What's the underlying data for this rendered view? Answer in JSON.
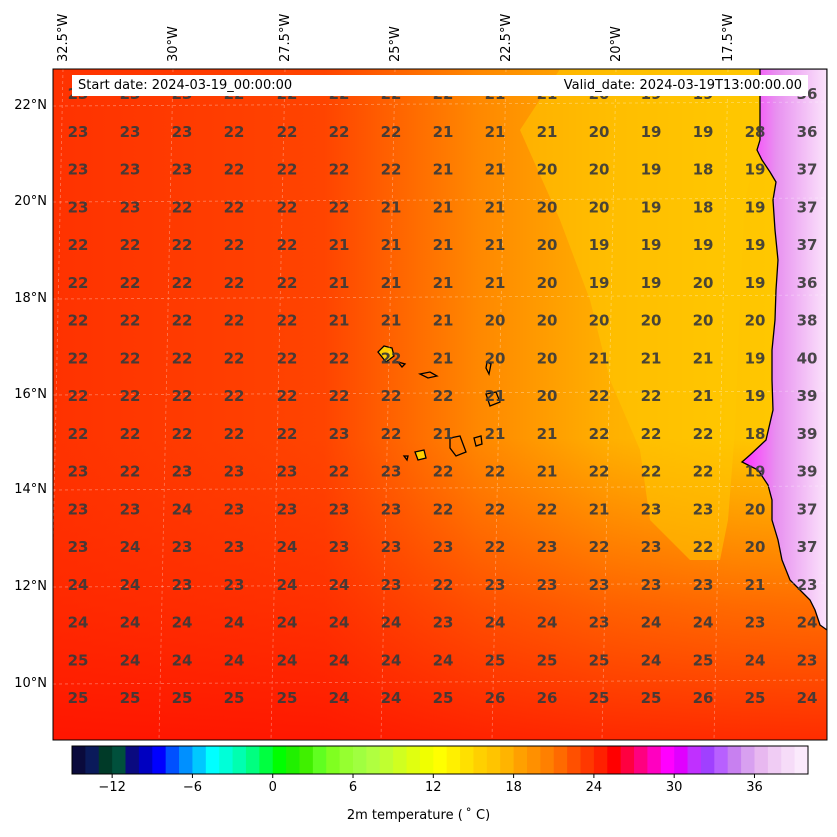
{
  "map": {
    "extent": {
      "lon_min": -32.8,
      "lon_max": -15.0,
      "lat_min": 8.9,
      "lat_max": 22.8
    },
    "projection": "PlateCarree",
    "gridlines": true
  },
  "header": {
    "start_date": "Start date: 2024-03-19_00:00:00",
    "valid_date": "Valid_date: 2024-03-19T13:00:00.00"
  },
  "lon_ticks": [
    "32.5°W",
    "30°W",
    "27.5°W",
    "25°W",
    "22.5°W",
    "20°W",
    "17.5°W"
  ],
  "lat_ticks": [
    "22°N",
    "20°N",
    "18°N",
    "16°N",
    "14°N",
    "12°N",
    "10°N"
  ],
  "temperature_grid": [
    [
      "23",
      "23",
      "23",
      "22",
      "22",
      "22",
      "22",
      "22",
      "21",
      "21",
      "20",
      "19",
      "19",
      "36"
    ],
    [
      "23",
      "23",
      "23",
      "22",
      "22",
      "22",
      "22",
      "21",
      "21",
      "21",
      "20",
      "19",
      "19",
      "28",
      "36"
    ],
    [
      "23",
      "23",
      "23",
      "22",
      "22",
      "22",
      "22",
      "21",
      "21",
      "20",
      "20",
      "19",
      "18",
      "19",
      "37"
    ],
    [
      "23",
      "23",
      "22",
      "22",
      "22",
      "22",
      "21",
      "21",
      "21",
      "20",
      "20",
      "19",
      "18",
      "19",
      "37"
    ],
    [
      "22",
      "22",
      "22",
      "22",
      "22",
      "21",
      "21",
      "21",
      "21",
      "20",
      "19",
      "19",
      "19",
      "19",
      "37"
    ],
    [
      "22",
      "22",
      "22",
      "22",
      "22",
      "21",
      "21",
      "21",
      "21",
      "20",
      "19",
      "19",
      "20",
      "19",
      "36"
    ],
    [
      "22",
      "22",
      "22",
      "22",
      "22",
      "21",
      "21",
      "21",
      "20",
      "20",
      "20",
      "20",
      "20",
      "20",
      "38"
    ],
    [
      "22",
      "22",
      "22",
      "22",
      "22",
      "22",
      "22",
      "21",
      "20",
      "20",
      "21",
      "21",
      "21",
      "19",
      "40"
    ],
    [
      "22",
      "22",
      "22",
      "22",
      "22",
      "22",
      "22",
      "22",
      "21",
      "20",
      "22",
      "22",
      "21",
      "19",
      "39"
    ],
    [
      "22",
      "22",
      "22",
      "22",
      "22",
      "23",
      "22",
      "21",
      "21",
      "21",
      "22",
      "22",
      "22",
      "18",
      "39"
    ],
    [
      "23",
      "22",
      "23",
      "23",
      "23",
      "22",
      "23",
      "22",
      "22",
      "21",
      "22",
      "22",
      "22",
      "19",
      "39"
    ],
    [
      "23",
      "23",
      "24",
      "23",
      "23",
      "23",
      "23",
      "22",
      "22",
      "22",
      "21",
      "23",
      "23",
      "20",
      "37"
    ],
    [
      "23",
      "24",
      "23",
      "23",
      "24",
      "23",
      "23",
      "23",
      "22",
      "23",
      "22",
      "23",
      "22",
      "20",
      "37"
    ],
    [
      "24",
      "24",
      "23",
      "23",
      "24",
      "24",
      "23",
      "22",
      "23",
      "23",
      "23",
      "23",
      "23",
      "21",
      "23"
    ],
    [
      "24",
      "24",
      "24",
      "24",
      "24",
      "24",
      "24",
      "23",
      "24",
      "24",
      "23",
      "24",
      "24",
      "23",
      "24"
    ],
    [
      "25",
      "24",
      "24",
      "24",
      "24",
      "24",
      "24",
      "24",
      "25",
      "25",
      "25",
      "24",
      "25",
      "24",
      "23"
    ],
    [
      "25",
      "25",
      "25",
      "25",
      "25",
      "24",
      "24",
      "25",
      "26",
      "26",
      "25",
      "25",
      "26",
      "25",
      "24"
    ]
  ],
  "colorbar": {
    "label": "2m temperature ( ˚ C)",
    "vmin": -15,
    "vmax": 40,
    "ticks": [
      "−12",
      "−6",
      "0",
      "6",
      "12",
      "18",
      "24",
      "30",
      "36"
    ],
    "tick_values": [
      -12,
      -6,
      0,
      6,
      12,
      18,
      24,
      30,
      36
    ]
  },
  "colors": {
    "sea_warm": "#ff3a00",
    "sea_mid": "#ff6a00",
    "cool_tongue": "#ffc000",
    "land_hot": "#f4b8f4",
    "coast": "#000000",
    "number_text": "#3a3a3a"
  }
}
